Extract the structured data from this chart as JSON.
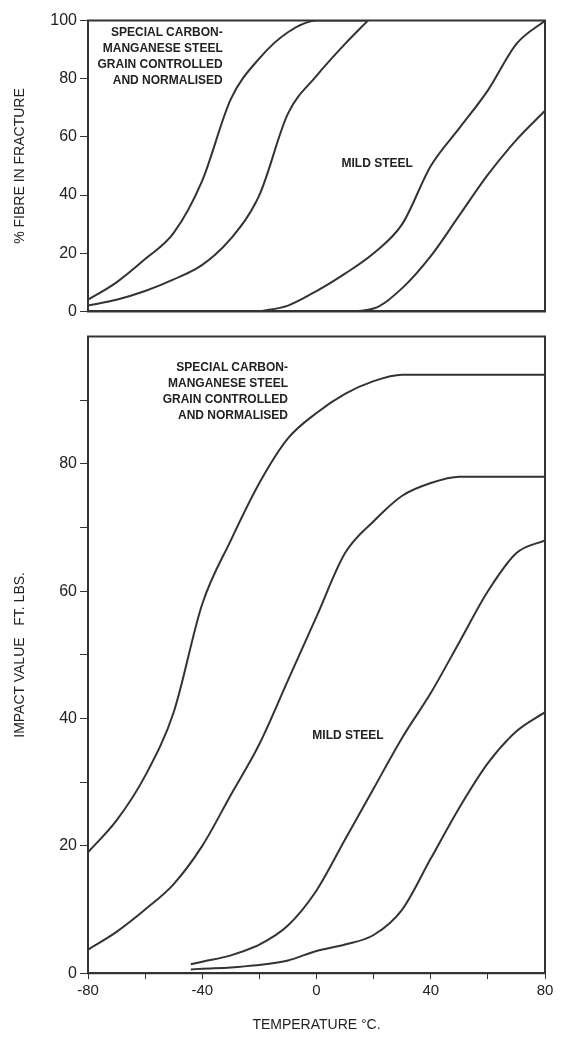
{
  "chart_data": [
    {
      "type": "line",
      "ylabel": "% FIBRE IN FRACTURE",
      "xlim": [
        -80,
        80
      ],
      "xticks": [
        -80,
        -40,
        0,
        40,
        80
      ],
      "ylim": [
        0,
        100
      ],
      "yticks": [
        0,
        20,
        40,
        60,
        80,
        100
      ],
      "tick_labels": "y",
      "series": [
        {
          "color": "#333333",
          "x": [
            -80,
            -70,
            -60,
            -50,
            -40,
            -30,
            -20,
            -10,
            0,
            10,
            18
          ],
          "values": [
            2,
            4,
            7,
            11,
            16,
            25,
            40,
            68,
            81,
            92,
            100
          ]
        },
        {
          "name": "SPECIAL CARBON-MANGANESE STEEL GRAIN CONTROLLED AND NORMALISED",
          "color": "#333333",
          "x": [
            -80,
            -70,
            -60,
            -50,
            -40,
            -30,
            -20,
            -10,
            0,
            10,
            18
          ],
          "values": [
            4,
            10,
            18,
            27,
            45,
            73,
            87,
            96,
            100,
            100,
            100
          ]
        },
        {
          "color": "#333333",
          "x": [
            -20,
            -10,
            0,
            10,
            20,
            30,
            40,
            50,
            60,
            70,
            80
          ],
          "values": [
            0,
            0,
            0,
            0,
            1,
            8,
            19,
            33,
            47,
            59,
            69
          ]
        },
        {
          "name": "MILD STEEL",
          "color": "#333333",
          "x": [
            -20,
            -10,
            0,
            10,
            20,
            30,
            40,
            50,
            60,
            70,
            80
          ],
          "values": [
            0,
            2,
            7,
            13,
            20,
            30,
            50,
            63,
            76,
            92,
            100
          ]
        }
      ]
    },
    {
      "type": "line",
      "xlabel": "TEMPERATURE °C.",
      "ylabel": "IMPACT VALUE   FT. LBS.",
      "xlim": [
        -80,
        80
      ],
      "xticks": [
        -80,
        {
          "value": -60,
          "label": null
        },
        -40,
        {
          "value": -20,
          "label": null
        },
        0,
        {
          "value": 20,
          "label": null
        },
        40,
        {
          "value": 60,
          "label": null
        },
        80
      ],
      "ylim": [
        0,
        100
      ],
      "yticks": [
        0,
        20,
        {
          "value": 30,
          "label": null
        },
        40,
        {
          "value": 50,
          "label": null
        },
        60,
        {
          "value": 70,
          "label": null
        },
        80,
        {
          "value": 90,
          "label": null
        }
      ],
      "series": [
        {
          "color": "#333333",
          "x": [
            -80,
            -70,
            -60,
            -50,
            -40,
            -30,
            -20,
            -10,
            0,
            10,
            20,
            30,
            40,
            50,
            60,
            80
          ],
          "values": [
            3.7,
            6.5,
            10,
            14,
            20,
            28,
            36,
            46,
            56,
            66,
            71,
            75,
            77,
            78,
            78,
            78
          ]
        },
        {
          "name": "SPECIAL CARBON-MANGANESE STEEL GRAIN CONTROLLED AND NORMALISED",
          "color": "#333333",
          "x": [
            -80,
            -70,
            -60,
            -50,
            -40,
            -30,
            -20,
            -10,
            0,
            10,
            20,
            30,
            40,
            50,
            60,
            80
          ],
          "values": [
            19,
            24,
            31,
            41,
            58,
            68,
            77,
            84,
            88,
            91,
            93,
            94,
            94,
            94,
            94,
            94
          ]
        },
        {
          "color": "#333333",
          "x": [
            -44,
            -40,
            -30,
            -20,
            -10,
            0,
            10,
            20,
            30,
            40,
            50,
            60,
            70,
            80
          ],
          "values": [
            0.6,
            0.7,
            0.9,
            1.3,
            2,
            3.5,
            4.5,
            6,
            10,
            18,
            26,
            33,
            38,
            41
          ]
        },
        {
          "name": "MILD STEEL",
          "color": "#333333",
          "x": [
            -44,
            -40,
            -30,
            -20,
            -10,
            0,
            10,
            20,
            30,
            40,
            50,
            60,
            70,
            80
          ],
          "values": [
            1.4,
            1.8,
            2.8,
            4.5,
            7.5,
            13,
            21,
            29,
            37,
            44,
            52,
            60,
            66,
            68
          ]
        }
      ]
    }
  ]
}
